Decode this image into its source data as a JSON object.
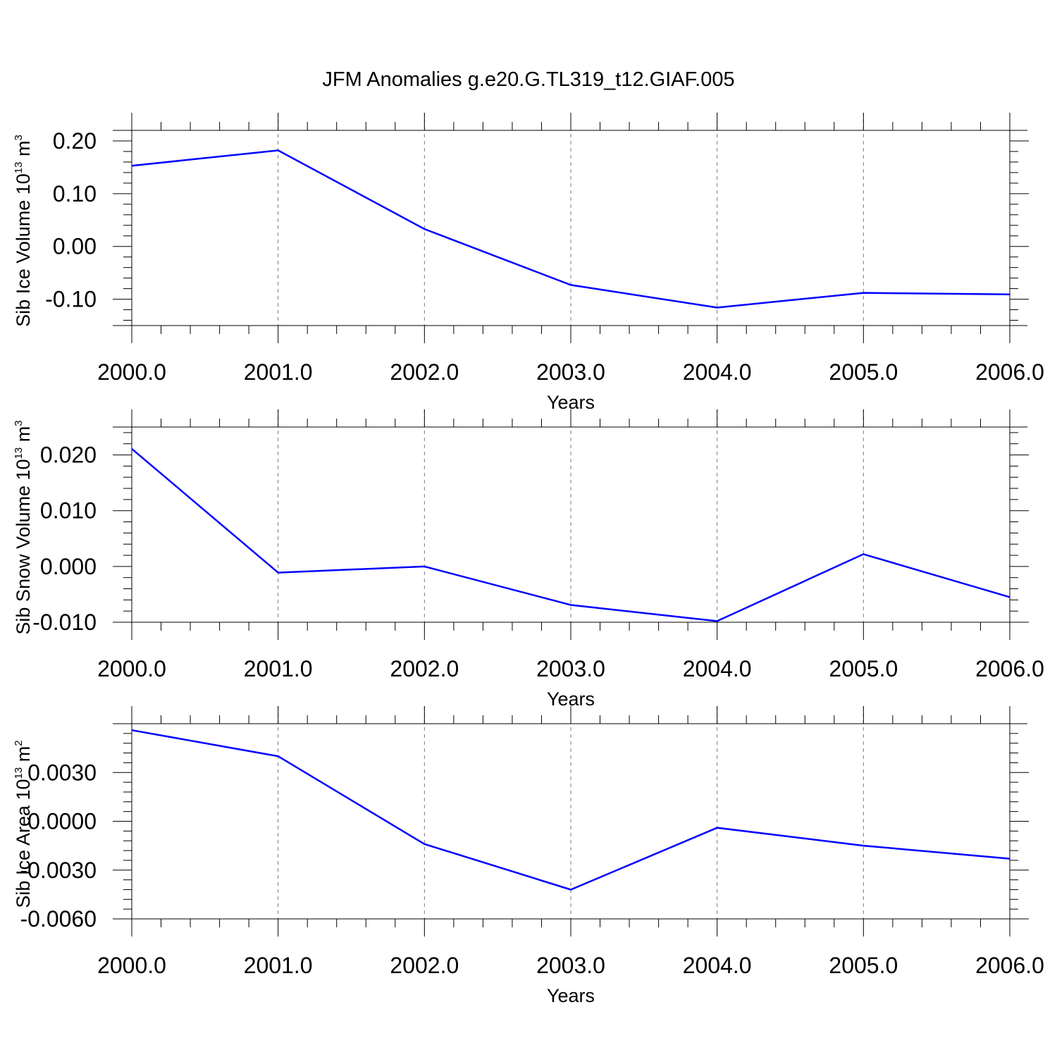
{
  "chart_data": [
    {
      "type": "line",
      "title": "JFM Anomalies g.e20.G.TL319_t12.GIAF.005",
      "xlabel": "Years",
      "ylabel": {
        "text": "Sib Ice Volume 10",
        "exponent": "13",
        "unit": " m",
        "unit_exponent": "3"
      },
      "xlim": [
        2000,
        2006
      ],
      "ylim": [
        -0.15,
        0.22
      ],
      "xticks": [
        2000,
        2001,
        2002,
        2003,
        2004,
        2005,
        2006
      ],
      "xtick_labels": [
        "2000.0",
        "2001.0",
        "2002.0",
        "2003.0",
        "2004.0",
        "2005.0",
        "2006.0"
      ],
      "yticks": [
        0.2,
        0.1,
        0.0,
        -0.1
      ],
      "ytick_labels": [
        "0.20",
        "0.10",
        "0.00",
        "-0.10"
      ],
      "grid": "vertical dashed at major x ticks",
      "color": "#0000ff",
      "x": [
        2000,
        2001,
        2002,
        2003,
        2004,
        2005,
        2006
      ],
      "y": [
        0.153,
        0.182,
        0.033,
        -0.073,
        -0.116,
        -0.088,
        -0.091
      ]
    },
    {
      "type": "line",
      "title": "",
      "xlabel": "Years",
      "ylabel": {
        "text": "Sib Snow Volume 10",
        "exponent": "13",
        "unit": " m",
        "unit_exponent": "3"
      },
      "xlim": [
        2000,
        2006
      ],
      "ylim": [
        -0.01,
        0.025
      ],
      "xticks": [
        2000,
        2001,
        2002,
        2003,
        2004,
        2005,
        2006
      ],
      "xtick_labels": [
        "2000.0",
        "2001.0",
        "2002.0",
        "2003.0",
        "2004.0",
        "2005.0",
        "2006.0"
      ],
      "yticks": [
        0.02,
        0.01,
        0.0,
        -0.01
      ],
      "ytick_labels": [
        "0.020",
        "0.010",
        "0.000",
        "-0.010"
      ],
      "grid": "vertical dashed at major x ticks",
      "color": "#0000ff",
      "x": [
        2000,
        2001,
        2002,
        2003,
        2004,
        2005,
        2006
      ],
      "y": [
        0.0211,
        -0.0011,
        0.0,
        -0.0069,
        -0.0098,
        0.0022,
        -0.0055
      ]
    },
    {
      "type": "line",
      "title": "",
      "xlabel": "Years",
      "ylabel": {
        "text": "Sib Ice Area 10",
        "exponent": "13",
        "unit": " m",
        "unit_exponent": "2"
      },
      "xlim": [
        2000,
        2006
      ],
      "ylim": [
        -0.006,
        0.006
      ],
      "xticks": [
        2000,
        2001,
        2002,
        2003,
        2004,
        2005,
        2006
      ],
      "xtick_labels": [
        "2000.0",
        "2001.0",
        "2002.0",
        "2003.0",
        "2004.0",
        "2005.0",
        "2006.0"
      ],
      "yticks": [
        0.003,
        0.0,
        -0.003,
        -0.006
      ],
      "ytick_labels": [
        "0.0030",
        "0.0000",
        "-0.0030",
        "-0.0060"
      ],
      "grid": "vertical dashed at major x ticks",
      "color": "#0000ff",
      "x": [
        2000,
        2001,
        2002,
        2003,
        2004,
        2005,
        2006
      ],
      "y": [
        0.0056,
        0.004,
        -0.0014,
        -0.0042,
        -0.0004,
        -0.0015,
        -0.0023
      ]
    }
  ]
}
